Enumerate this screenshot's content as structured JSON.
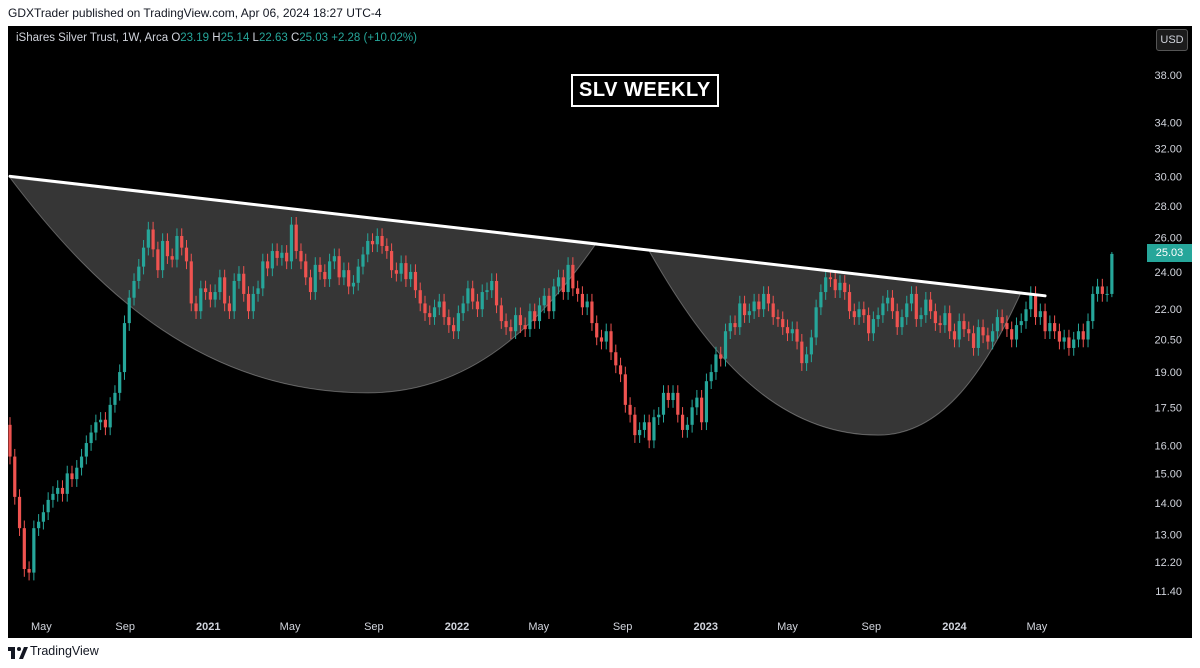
{
  "header": {
    "published_text": "GDXTrader published on TradingView.com, Apr 06, 2024 18:27 UTC-4"
  },
  "legend": {
    "symbol": "iShares Silver Trust, 1W, Arca",
    "o_label": "O",
    "o_value": "23.19",
    "h_label": "H",
    "h_value": "25.14",
    "l_label": "L",
    "l_value": "22.63",
    "c_label": "C",
    "c_value": "25.03",
    "change": "+2.28 (+10.02%)"
  },
  "currency_button": "USD",
  "last_price_badge": "25.03",
  "footer": {
    "brand": "TradingView"
  },
  "colors": {
    "up": "#26a69a",
    "down": "#ef5350",
    "background": "#000000",
    "axis_text": "#d1d4dc"
  },
  "chart_data": {
    "type": "candlestick",
    "title": "SLV WEEKLY",
    "interval": "1W",
    "y_scale": "log",
    "y_ticks": [
      "38.00",
      "34.00",
      "32.00",
      "30.00",
      "28.00",
      "26.00",
      "24.00",
      "22.00",
      "20.50",
      "19.00",
      "17.50",
      "16.00",
      "15.00",
      "14.00",
      "13.00",
      "12.20",
      "11.40"
    ],
    "x_ticks": [
      "May",
      "Sep",
      "2021",
      "May",
      "Sep",
      "2022",
      "May",
      "Sep",
      "2023",
      "May",
      "Sep",
      "2024",
      "May"
    ],
    "x_ticks_bold": [
      "2021",
      "2022",
      "2023",
      "2024"
    ],
    "start_date": "2020-03-16",
    "series_close": [
      15.6,
      14.2,
      13.2,
      12.0,
      11.9,
      13.2,
      13.4,
      13.7,
      14.1,
      14.3,
      14.5,
      14.3,
      15.0,
      14.8,
      15.2,
      15.6,
      16.1,
      16.5,
      16.9,
      17.0,
      16.7,
      17.6,
      18.1,
      19.0,
      21.3,
      22.6,
      23.5,
      24.3,
      25.4,
      26.5,
      25.3,
      24.1,
      25.8,
      24.9,
      24.7,
      26.1,
      25.4,
      24.6,
      22.3,
      21.9,
      23.1,
      22.9,
      22.5,
      22.9,
      23.7,
      22.3,
      21.9,
      23.5,
      23.9,
      22.8,
      21.9,
      22.8,
      23.1,
      24.6,
      24.2,
      25.2,
      24.8,
      25.1,
      24.6,
      26.8,
      25.2,
      24.6,
      23.7,
      22.9,
      24.4,
      24.0,
      23.6,
      24.6,
      24.9,
      23.7,
      24.1,
      23.2,
      23.4,
      24.3,
      25.0,
      25.8,
      25.6,
      26.1,
      25.5,
      25.2,
      24.1,
      23.9,
      24.5,
      23.6,
      24.0,
      23.0,
      22.3,
      21.8,
      21.6,
      22.1,
      22.4,
      21.6,
      21.2,
      20.9,
      21.8,
      22.3,
      23.1,
      22.4,
      22.0,
      22.9,
      23.0,
      23.5,
      22.2,
      21.4,
      21.1,
      20.9,
      21.7,
      21.2,
      21.0,
      21.9,
      21.4,
      22.2,
      22.7,
      21.9,
      23.2,
      23.7,
      22.9,
      24.4,
      23.1,
      22.8,
      22.1,
      22.4,
      21.3,
      20.6,
      20.4,
      20.9,
      19.9,
      19.3,
      18.9,
      17.6,
      17.2,
      16.4,
      16.6,
      16.9,
      16.2,
      17.1,
      17.2,
      18.1,
      17.8,
      18.1,
      17.2,
      16.6,
      16.8,
      17.5,
      17.9,
      16.9,
      18.6,
      19.0,
      19.8,
      19.6,
      20.9,
      21.3,
      21.1,
      22.3,
      21.7,
      21.9,
      22.4,
      22.0,
      22.8,
      22.3,
      21.6,
      21.5,
      21.1,
      20.8,
      21.0,
      20.4,
      19.4,
      19.8,
      20.6,
      22.1,
      22.9,
      23.7,
      23.6,
      23.0,
      23.4,
      22.9,
      21.9,
      21.6,
      22.0,
      21.7,
      20.8,
      21.5,
      21.7,
      22.3,
      22.6,
      21.9,
      21.1,
      21.6,
      22.3,
      22.8,
      21.5,
      21.7,
      22.5,
      21.9,
      21.3,
      21.2,
      21.8,
      20.9,
      20.5,
      21.4,
      21.0,
      20.8,
      20.1,
      21.1,
      20.7,
      20.4,
      20.9,
      21.6,
      21.3,
      21.0,
      20.5,
      21.2,
      21.4,
      22.0,
      22.8,
      21.6,
      21.9,
      20.9,
      21.3,
      20.9,
      20.4,
      20.6,
      20.1,
      20.5,
      20.9,
      20.5,
      21.4,
      22.8,
      23.2,
      22.8,
      22.8,
      25.03
    ],
    "trendline": {
      "from": {
        "date": "2020-03-16",
        "price": 30.0
      },
      "to": {
        "date": "2024-05-13",
        "price": 22.7
      }
    },
    "annotations": [
      {
        "type": "arc",
        "shape": "rounding-bottom",
        "from": {
          "date": "2020-03-16",
          "price": 29.9
        },
        "bottom": {
          "date": "2021-08-23",
          "price": 18.1
        },
        "to": {
          "date": "2022-07-25",
          "price": 25.7
        }
      },
      {
        "type": "arc",
        "shape": "rounding-bottom",
        "from": {
          "date": "2022-10-10",
          "price": 25.2
        },
        "bottom": {
          "date": "2023-09-11",
          "price": 16.4
        },
        "to": {
          "date": "2024-04-08",
          "price": 22.9
        }
      }
    ]
  }
}
